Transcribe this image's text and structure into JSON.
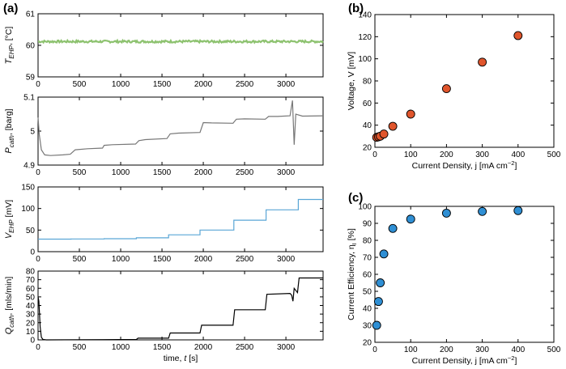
{
  "chart_data": [
    {
      "id": "a1",
      "panel_label": "(a)",
      "type": "line",
      "ylabel_main": "T",
      "ylabel_sub": "EHP",
      "ylabel_unit": ", [°C]",
      "xlim": [
        0,
        3450
      ],
      "ylim": [
        59,
        61
      ],
      "yticks": [
        59,
        60,
        61
      ],
      "xticks": [
        0,
        500,
        1000,
        1500,
        2000,
        2500,
        3000
      ],
      "color": "#8dc26f",
      "series": [
        {
          "name": "T_EHP",
          "kind": "flat",
          "base": 60.12,
          "noise": 0.035,
          "x": [
            0,
            3450
          ],
          "y": [
            60.14,
            60.14
          ]
        }
      ]
    },
    {
      "id": "a2",
      "type": "line",
      "ylabel_main": "P",
      "ylabel_sub": "cath",
      "ylabel_unit": ", [barg]",
      "xlim": [
        0,
        3450
      ],
      "ylim": [
        4.9,
        5.1
      ],
      "yticks": [
        4.9,
        5,
        5.1
      ],
      "ytick_labels": [
        "4.9",
        "5",
        "5.1"
      ],
      "xticks": [
        0,
        500,
        1000,
        1500,
        2000,
        2500,
        3000
      ],
      "color": "#777777",
      "series": [
        {
          "name": "P_cath",
          "x": [
            0,
            15,
            40,
            80,
            150,
            300,
            390,
            450,
            600,
            780,
            800,
            900,
            1180,
            1220,
            1300,
            1560,
            1600,
            1700,
            1960,
            2000,
            2100,
            2360,
            2400,
            2500,
            2750,
            2790,
            2900,
            3050,
            3080,
            3100,
            3120,
            3200,
            3450
          ],
          "y": [
            5.04,
            4.99,
            4.945,
            4.93,
            4.928,
            4.93,
            4.932,
            4.945,
            4.948,
            4.95,
            4.958,
            4.96,
            4.962,
            4.972,
            4.975,
            4.978,
            4.992,
            4.994,
            4.996,
            5.025,
            5.024,
            5.023,
            5.035,
            5.036,
            5.035,
            5.043,
            5.043,
            5.045,
            5.09,
            4.96,
            5.05,
            5.044,
            5.045
          ]
        }
      ]
    },
    {
      "id": "a3",
      "type": "line",
      "ylabel_main": "V",
      "ylabel_sub": "EHP",
      "ylabel_unit": " [mV]",
      "xlim": [
        0,
        3450
      ],
      "ylim": [
        0,
        150
      ],
      "yticks": [
        0,
        50,
        100,
        150
      ],
      "xticks": [
        0,
        500,
        1000,
        1500,
        2000,
        2500,
        3000
      ],
      "color": "#5aa6d6",
      "series": [
        {
          "name": "V_EHP",
          "x": [
            0,
            400,
            400,
            800,
            800,
            1190,
            1190,
            1580,
            1580,
            1960,
            1960,
            2370,
            2370,
            2760,
            2760,
            3150,
            3150,
            3450
          ],
          "y": [
            29,
            29,
            29.5,
            29.5,
            30,
            30,
            32,
            32,
            39,
            39,
            50,
            50,
            73,
            73,
            97,
            97,
            121,
            121
          ]
        }
      ]
    },
    {
      "id": "a4",
      "type": "line",
      "ylabel_main": "Q",
      "ylabel_sub": "cath",
      "ylabel_unit": ", [mls/min]",
      "xlabel": "time,",
      "xlabel_var": "t",
      "xlabel_unit": " [s]",
      "xlim": [
        0,
        3450
      ],
      "ylim": [
        0,
        80
      ],
      "yticks": [
        0,
        10,
        20,
        30,
        40,
        50,
        60,
        70,
        80
      ],
      "xticks": [
        0,
        500,
        1000,
        1500,
        2000,
        2500,
        3000
      ],
      "color": "#000000",
      "series": [
        {
          "name": "Q_cath",
          "x": [
            0,
            10,
            25,
            40,
            60,
            100,
            1190,
            1210,
            1580,
            1600,
            1960,
            1980,
            2360,
            2380,
            2750,
            2770,
            3050,
            3070,
            3085,
            3100,
            3140,
            3160,
            3450
          ],
          "y": [
            50,
            45,
            15,
            3,
            0.5,
            0,
            0.5,
            2,
            2,
            8,
            8,
            17,
            17,
            35,
            35,
            53,
            54,
            52,
            45,
            60,
            55,
            72,
            72
          ]
        }
      ]
    },
    {
      "id": "b",
      "panel_label": "(b)",
      "type": "scatter",
      "ylabel": "Voltage, V [mV]",
      "xlabel": "Current Density, j [mA cm",
      "xlabel_sup": "−2",
      "xlabel_end": "]",
      "xlim": [
        0,
        500
      ],
      "ylim": [
        20,
        140
      ],
      "xticks": [
        0,
        100,
        200,
        300,
        400,
        500
      ],
      "yticks": [
        20,
        40,
        60,
        80,
        100,
        120,
        140
      ],
      "color": "#e0552c",
      "series": [
        {
          "name": "Voltage",
          "x": [
            5,
            10,
            15,
            25,
            50,
            100,
            200,
            300,
            400
          ],
          "y": [
            29,
            29.5,
            30,
            32,
            39,
            50,
            73,
            97,
            121
          ]
        }
      ]
    },
    {
      "id": "c",
      "panel_label": "(c)",
      "type": "scatter",
      "ylabel": "Current Efficiency, η",
      "ylabel_sub": "I",
      "ylabel_end": " [%]",
      "xlabel": "Current Density, j [mA cm",
      "xlabel_sup": "−2",
      "xlabel_end": "]",
      "xlim": [
        0,
        500
      ],
      "ylim": [
        20,
        100
      ],
      "xticks": [
        0,
        100,
        200,
        300,
        400,
        500
      ],
      "yticks": [
        20,
        30,
        40,
        50,
        60,
        70,
        80,
        90,
        100
      ],
      "color": "#2f8fd4",
      "series": [
        {
          "name": "Efficiency",
          "x": [
            5,
            10,
            15,
            25,
            50,
            100,
            200,
            300,
            400
          ],
          "y": [
            30,
            44,
            55,
            72,
            87,
            92.5,
            96,
            97,
            97.5
          ]
        }
      ]
    }
  ]
}
